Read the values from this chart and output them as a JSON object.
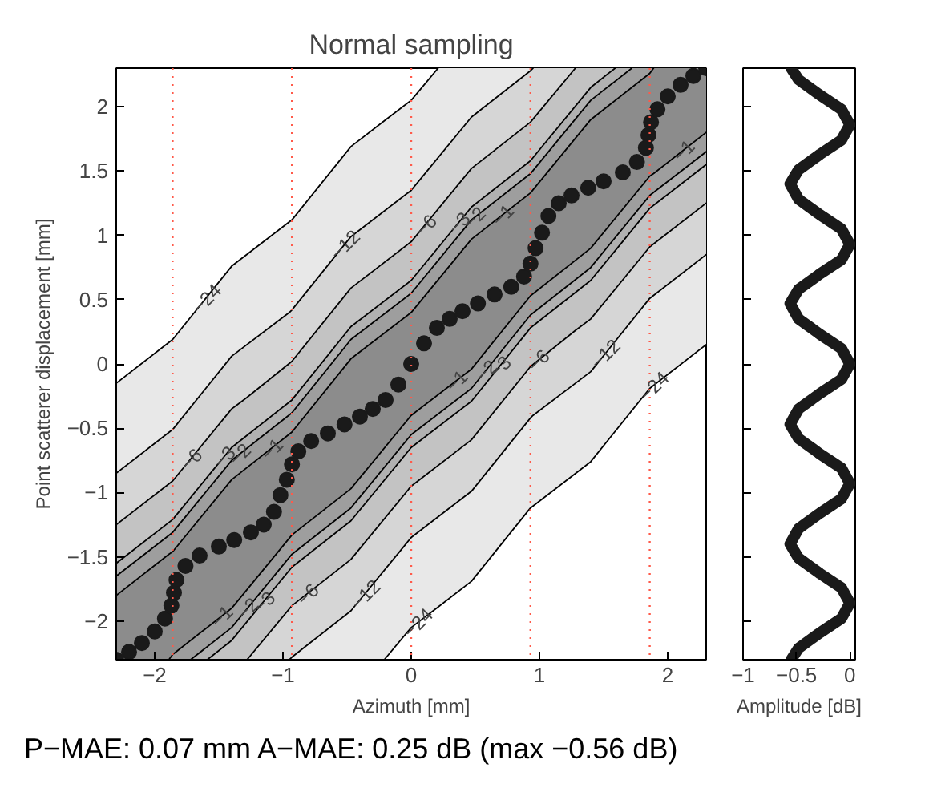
{
  "chart_data": [
    {
      "type": "scatter",
      "title": "Normal sampling",
      "xlabel": "Azimuth [mm]",
      "ylabel": "Point scatterer displacement [mm]",
      "xlim": [
        -2.3,
        2.3
      ],
      "ylim": [
        -2.3,
        2.3
      ],
      "xticks": [
        {
          "value": -2,
          "label": "−2"
        },
        {
          "value": -1,
          "label": "−1"
        },
        0,
        1,
        2
      ],
      "yticks": [
        {
          "value": -2,
          "label": "−2"
        },
        {
          "value": -1.5,
          "label": "−1.5"
        },
        {
          "value": -1,
          "label": "−1"
        },
        {
          "value": -0.5,
          "label": "−0.5"
        },
        0,
        0.5,
        1,
        1.5,
        2
      ],
      "grid": false,
      "series": [
        {
          "type": "line",
          "color": "#000000",
          "x": [
            -2.3,
            -1.86,
            -1.4,
            -0.93,
            -0.47,
            -0.21,
            0,
            0.21
          ],
          "values": [
            -0.15,
            0.19,
            0.76,
            1.12,
            1.69,
            1.89,
            2.05,
            2.3
          ]
        },
        {
          "type": "line",
          "color": "#000000",
          "x": [
            -0.21,
            0,
            0.21,
            0.47,
            0.93,
            1.4,
            1.86,
            2.3
          ],
          "values": [
            -2.3,
            -2.05,
            -1.89,
            -1.69,
            -1.12,
            -0.76,
            -0.19,
            0.15
          ]
        },
        {
          "type": "line",
          "color": "#000000",
          "x": [
            -2.3,
            -1.86,
            -1.4,
            -0.95,
            -0.93,
            -0.47,
            0,
            0.47,
            0.93,
            0.95
          ],
          "values": [
            -0.85,
            -0.51,
            0.06,
            0.4,
            0.42,
            0.99,
            1.35,
            1.92,
            2.28,
            2.3
          ]
        },
        {
          "type": "line",
          "color": "#000000",
          "x": [
            -0.95,
            -0.93,
            -0.47,
            0,
            0.47,
            0.93,
            0.95,
            1.4,
            1.86,
            2.3
          ],
          "values": [
            -2.3,
            -2.28,
            -1.92,
            -1.35,
            -0.99,
            -0.42,
            -0.4,
            -0.06,
            0.51,
            0.85
          ]
        },
        {
          "type": "line",
          "color": "#000000",
          "x": [
            -2.3,
            -1.86,
            -1.4,
            -1.28,
            -0.93,
            -0.47,
            0,
            0.47,
            0.93,
            1.28
          ],
          "values": [
            -1.25,
            -0.91,
            -0.35,
            -0.26,
            0.02,
            0.59,
            0.95,
            1.52,
            1.88,
            2.3
          ]
        },
        {
          "type": "line",
          "color": "#000000",
          "x": [
            -1.28,
            -0.93,
            -0.47,
            0,
            0.47,
            0.93,
            1.28,
            1.4,
            1.86,
            2.3
          ],
          "values": [
            -2.3,
            -1.88,
            -1.52,
            -0.95,
            -0.59,
            -0.02,
            0.26,
            0.35,
            0.91,
            1.25
          ]
        },
        {
          "type": "line",
          "color": "#000000",
          "x": [
            -2.3,
            -1.86,
            -1.59,
            -1.4,
            -0.93,
            -0.47,
            0,
            0.47,
            0.93,
            1.4,
            1.59
          ],
          "values": [
            -1.55,
            -1.21,
            -0.88,
            -0.65,
            -0.28,
            0.29,
            0.65,
            1.22,
            1.58,
            2.15,
            2.3
          ]
        },
        {
          "type": "line",
          "color": "#000000",
          "x": [
            -1.59,
            -1.4,
            -0.93,
            -0.47,
            0,
            0.47,
            0.93,
            1.4,
            1.59,
            1.86,
            2.3
          ],
          "values": [
            -2.3,
            -2.15,
            -1.58,
            -1.22,
            -0.65,
            -0.29,
            0.28,
            0.65,
            0.88,
            1.21,
            1.55
          ]
        },
        {
          "type": "line",
          "color": "#000000",
          "x": [
            -2.3,
            -1.86,
            -1.72,
            -1.4,
            -0.93,
            -0.47,
            0,
            0.47,
            0.93,
            1.4,
            1.72
          ],
          "values": [
            -1.65,
            -1.31,
            -1.14,
            -0.75,
            -0.38,
            0.19,
            0.55,
            1.12,
            1.48,
            2.05,
            2.3
          ]
        },
        {
          "type": "line",
          "color": "#000000",
          "x": [
            -1.72,
            -1.4,
            -0.93,
            -0.47,
            0,
            0.47,
            0.93,
            1.4,
            1.72,
            1.86,
            2.3
          ],
          "values": [
            -2.3,
            -2.05,
            -1.48,
            -1.12,
            -0.55,
            -0.19,
            0.38,
            0.75,
            1.14,
            1.31,
            1.65
          ]
        },
        {
          "type": "line",
          "color": "#000000",
          "x": [
            -2.3,
            -1.89,
            -1.86,
            -1.4,
            -0.93,
            -0.47,
            0,
            0.47,
            0.93,
            1.4,
            1.86,
            1.89
          ],
          "values": [
            -1.8,
            -1.48,
            -1.46,
            -0.9,
            -0.53,
            0.04,
            0.4,
            0.97,
            1.33,
            1.9,
            2.26,
            2.3
          ]
        },
        {
          "type": "line",
          "color": "#000000",
          "x": [
            -1.89,
            -1.86,
            -1.4,
            -0.93,
            -0.47,
            0,
            0.47,
            0.93,
            1.4,
            1.86,
            1.89,
            2.3
          ],
          "values": [
            -2.3,
            -2.26,
            -1.9,
            -1.33,
            -0.97,
            -0.4,
            -0.04,
            0.53,
            0.9,
            1.46,
            1.48,
            1.8
          ]
        },
        {
          "type": "scatter",
          "marker": "circle",
          "color": "#1a1a1a",
          "x": [
            -2.3,
            -2.2,
            -2.1,
            -2.0,
            -1.92,
            -1.87,
            -1.85,
            -1.83,
            -1.76,
            -1.65,
            -1.5,
            -1.38,
            -1.25,
            -1.15,
            -1.07,
            -1.02,
            -0.97,
            -0.93,
            -0.88,
            -0.78,
            -0.65,
            -0.52,
            -0.4,
            -0.3,
            -0.2,
            -0.1,
            0,
            0.1,
            0.2,
            0.3,
            0.4,
            0.52,
            0.65,
            0.78,
            0.88,
            0.93,
            0.97,
            1.02,
            1.07,
            1.15,
            1.25,
            1.38,
            1.5,
            1.65,
            1.76,
            1.83,
            1.85,
            1.87,
            1.92,
            2.0,
            2.1,
            2.2,
            2.3
          ],
          "values": [
            -2.3,
            -2.24,
            -2.17,
            -2.08,
            -1.98,
            -1.88,
            -1.78,
            -1.68,
            -1.57,
            -1.49,
            -1.42,
            -1.37,
            -1.31,
            -1.25,
            -1.15,
            -1.02,
            -0.9,
            -0.78,
            -0.68,
            -0.6,
            -0.54,
            -0.47,
            -0.41,
            -0.35,
            -0.28,
            -0.16,
            0,
            0.16,
            0.28,
            0.35,
            0.41,
            0.47,
            0.54,
            0.6,
            0.68,
            0.78,
            0.9,
            1.02,
            1.15,
            1.25,
            1.31,
            1.37,
            1.42,
            1.49,
            1.57,
            1.68,
            1.78,
            1.88,
            1.98,
            2.08,
            2.17,
            2.24,
            2.3
          ]
        }
      ],
      "ref_lines": [
        {
          "axis": "x",
          "value": -1.86,
          "color": "#ff5a4a",
          "line_style": "dotted"
        },
        {
          "axis": "x",
          "value": -0.93,
          "color": "#ff5a4a",
          "line_style": "dotted"
        },
        {
          "axis": "x",
          "value": 0,
          "color": "#ff5a4a",
          "line_style": "dotted"
        },
        {
          "axis": "x",
          "value": 0.93,
          "color": "#ff5a4a",
          "line_style": "dotted"
        },
        {
          "axis": "x",
          "value": 1.86,
          "color": "#ff5a4a",
          "line_style": "dotted"
        }
      ],
      "annotations": [
        {
          "text": "−24",
          "x": -1.6,
          "y": 0.51
        },
        {
          "text": "−12",
          "x": -0.52,
          "y": 0.93
        },
        {
          "text": "−6",
          "x": -1.72,
          "y": -0.74
        },
        {
          "text": "−3",
          "x": -1.46,
          "y": -0.72
        },
        {
          "text": "−2",
          "x": -1.34,
          "y": -0.7
        },
        {
          "text": "−1",
          "x": -1.09,
          "y": -0.66
        },
        {
          "text": "−6",
          "x": 0.11,
          "y": 1.08
        },
        {
          "text": "−3",
          "x": 0.37,
          "y": 1.1
        },
        {
          "text": "−2",
          "x": 0.49,
          "y": 1.14
        },
        {
          "text": "−1",
          "x": 0.71,
          "y": 1.16
        },
        {
          "text": "−1",
          "x": 2.12,
          "y": 1.66
        },
        {
          "text": "−1",
          "x": -1.48,
          "y": -1.96
        },
        {
          "text": "−2",
          "x": -1.28,
          "y": -1.9
        },
        {
          "text": "−3",
          "x": -1.15,
          "y": -1.85
        },
        {
          "text": "−6",
          "x": -0.81,
          "y": -1.79
        },
        {
          "text": "−12",
          "x": -0.36,
          "y": -1.79
        },
        {
          "text": "−24",
          "x": 0.05,
          "y": -2.01
        },
        {
          "text": "−1",
          "x": 0.35,
          "y": -0.13
        },
        {
          "text": "−2",
          "x": 0.58,
          "y": -0.05
        },
        {
          "text": "−3",
          "x": 0.69,
          "y": -0.02
        },
        {
          "text": "−6",
          "x": 0.99,
          "y": 0.03
        },
        {
          "text": "−12",
          "x": 1.51,
          "y": 0.08
        },
        {
          "text": "−24",
          "x": 1.89,
          "y": -0.17
        },
        "P−MAE: 0.07 mm  A−MAE: 0.25 dB (max −0.56 dB)"
      ]
    },
    {
      "type": "line",
      "xlabel": "Amplitude [dB]",
      "xlim": [
        -1,
        0.05
      ],
      "ylim": [
        -2.3,
        2.3
      ],
      "xticks": [
        {
          "value": -1,
          "label": "−1"
        },
        {
          "value": -0.5,
          "label": "−0.5"
        },
        0
      ],
      "yticks": [
        -2,
        -1.5,
        -1,
        -0.5,
        0,
        0.5,
        1,
        1.5,
        2
      ],
      "tick_labels": "x",
      "grid": false,
      "line_style": "solid",
      "series": [
        {
          "color": "#1a1a1a",
          "x": [
            -0.55,
            -0.48,
            -0.28,
            -0.08,
            0,
            -0.08,
            -0.28,
            -0.48,
            -0.56,
            -0.48,
            -0.28,
            -0.08,
            0,
            -0.08,
            -0.28,
            -0.48,
            -0.56,
            -0.48,
            -0.28,
            -0.08,
            0,
            -0.08,
            -0.28,
            -0.48,
            -0.56,
            -0.48,
            -0.28,
            -0.08,
            0,
            -0.08,
            -0.28,
            -0.48,
            -0.56,
            -0.48,
            -0.28,
            -0.08,
            0,
            -0.08,
            -0.28,
            -0.48,
            -0.55
          ],
          "values": [
            -2.3,
            -2.21,
            -2.09,
            -1.98,
            -1.86,
            -1.74,
            -1.63,
            -1.51,
            -1.4,
            -1.28,
            -1.16,
            -1.05,
            -0.93,
            -0.81,
            -0.7,
            -0.58,
            -0.47,
            -0.35,
            -0.23,
            -0.12,
            0,
            0.12,
            0.23,
            0.35,
            0.47,
            0.58,
            0.7,
            0.81,
            0.93,
            1.05,
            1.16,
            1.28,
            1.4,
            1.51,
            1.63,
            1.74,
            1.86,
            1.98,
            2.09,
            2.21,
            2.3
          ]
        }
      ]
    }
  ]
}
